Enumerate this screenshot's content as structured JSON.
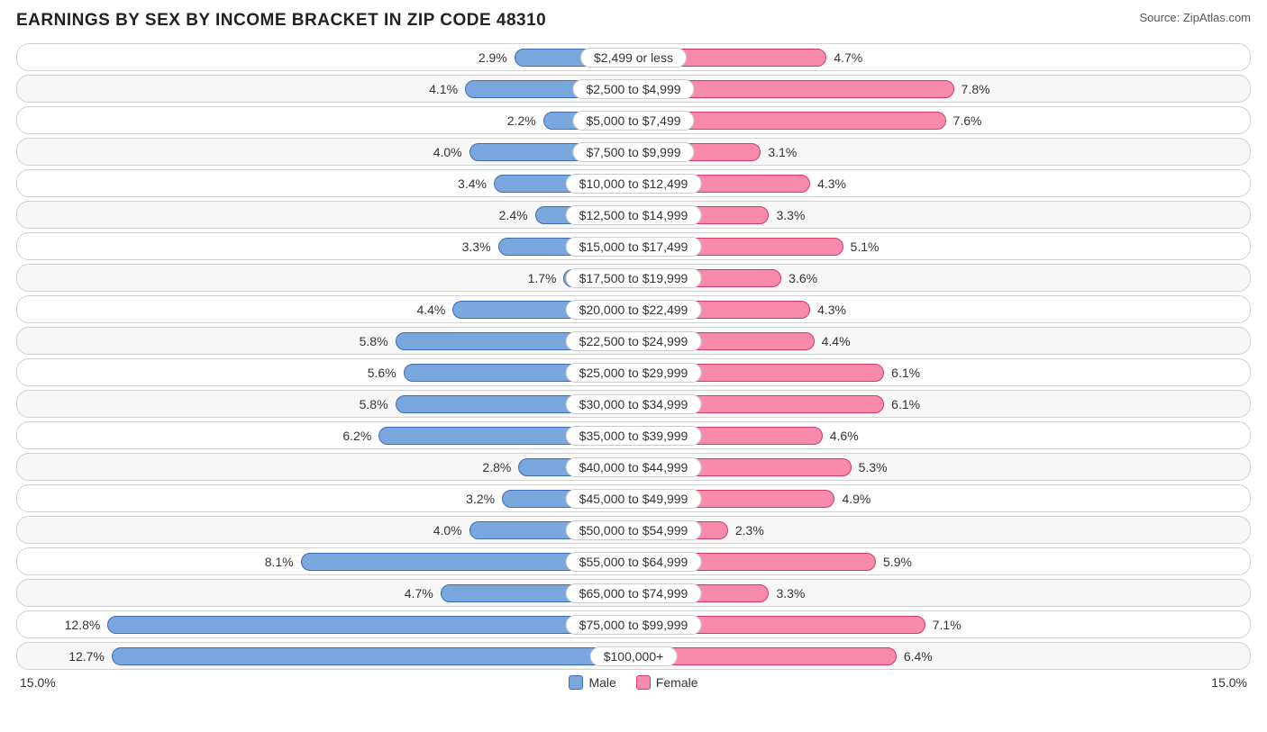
{
  "title": "EARNINGS BY SEX BY INCOME BRACKET IN ZIP CODE 48310",
  "source": "Source: ZipAtlas.com",
  "max_percent": 15.0,
  "axis_left": "15.0%",
  "axis_right": "15.0%",
  "legend": {
    "male": "Male",
    "female": "Female"
  },
  "colors": {
    "male_fill": "#7aa7dd",
    "male_border": "#3d6bb3",
    "female_fill": "#f88aac",
    "female_border": "#d03a64",
    "row_border": "#d0d0d0",
    "alt_row_bg": "#f7f7f7",
    "text": "#333333",
    "background": "#ffffff"
  },
  "rows": [
    {
      "label": "$2,499 or less",
      "male": 2.9,
      "female": 4.7,
      "ml": "2.9%",
      "fl": "4.7%"
    },
    {
      "label": "$2,500 to $4,999",
      "male": 4.1,
      "female": 7.8,
      "ml": "4.1%",
      "fl": "7.8%"
    },
    {
      "label": "$5,000 to $7,499",
      "male": 2.2,
      "female": 7.6,
      "ml": "2.2%",
      "fl": "7.6%"
    },
    {
      "label": "$7,500 to $9,999",
      "male": 4.0,
      "female": 3.1,
      "ml": "4.0%",
      "fl": "3.1%"
    },
    {
      "label": "$10,000 to $12,499",
      "male": 3.4,
      "female": 4.3,
      "ml": "3.4%",
      "fl": "4.3%"
    },
    {
      "label": "$12,500 to $14,999",
      "male": 2.4,
      "female": 3.3,
      "ml": "2.4%",
      "fl": "3.3%"
    },
    {
      "label": "$15,000 to $17,499",
      "male": 3.3,
      "female": 5.1,
      "ml": "3.3%",
      "fl": "5.1%"
    },
    {
      "label": "$17,500 to $19,999",
      "male": 1.7,
      "female": 3.6,
      "ml": "1.7%",
      "fl": "3.6%"
    },
    {
      "label": "$20,000 to $22,499",
      "male": 4.4,
      "female": 4.3,
      "ml": "4.4%",
      "fl": "4.3%"
    },
    {
      "label": "$22,500 to $24,999",
      "male": 5.8,
      "female": 4.4,
      "ml": "5.8%",
      "fl": "4.4%"
    },
    {
      "label": "$25,000 to $29,999",
      "male": 5.6,
      "female": 6.1,
      "ml": "5.6%",
      "fl": "6.1%"
    },
    {
      "label": "$30,000 to $34,999",
      "male": 5.8,
      "female": 6.1,
      "ml": "5.8%",
      "fl": "6.1%"
    },
    {
      "label": "$35,000 to $39,999",
      "male": 6.2,
      "female": 4.6,
      "ml": "6.2%",
      "fl": "4.6%"
    },
    {
      "label": "$40,000 to $44,999",
      "male": 2.8,
      "female": 5.3,
      "ml": "2.8%",
      "fl": "5.3%"
    },
    {
      "label": "$45,000 to $49,999",
      "male": 3.2,
      "female": 4.9,
      "ml": "3.2%",
      "fl": "4.9%"
    },
    {
      "label": "$50,000 to $54,999",
      "male": 4.0,
      "female": 2.3,
      "ml": "4.0%",
      "fl": "2.3%"
    },
    {
      "label": "$55,000 to $64,999",
      "male": 8.1,
      "female": 5.9,
      "ml": "8.1%",
      "fl": "5.9%"
    },
    {
      "label": "$65,000 to $74,999",
      "male": 4.7,
      "female": 3.3,
      "ml": "4.7%",
      "fl": "3.3%"
    },
    {
      "label": "$75,000 to $99,999",
      "male": 12.8,
      "female": 7.1,
      "ml": "12.8%",
      "fl": "7.1%"
    },
    {
      "label": "$100,000+",
      "male": 12.7,
      "female": 6.4,
      "ml": "12.7%",
      "fl": "6.4%"
    }
  ]
}
